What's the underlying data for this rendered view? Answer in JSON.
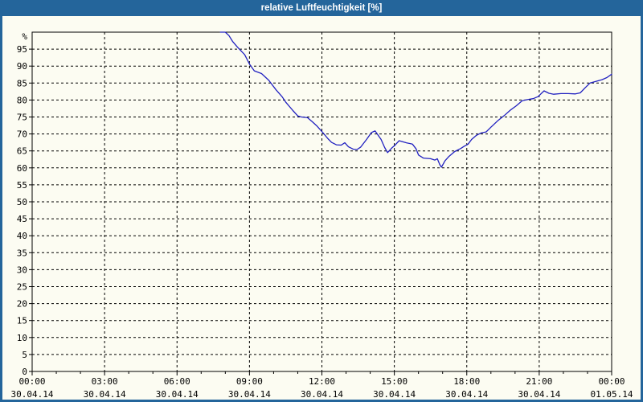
{
  "window": {
    "title": "relative Luftfeuchtigkeit [%]",
    "title_bar_color": "#24659B",
    "content_background": "#FCFCF2"
  },
  "chart_data": {
    "type": "line",
    "title": "relative Luftfeuchtigkeit [%]",
    "unit_label": "%",
    "line_color": "#2121C0",
    "grid": "dashed",
    "ylim": [
      0,
      100
    ],
    "y_ticks": [
      95,
      90,
      85,
      80,
      75,
      70,
      65,
      60,
      55,
      50,
      45,
      40,
      35,
      30,
      25,
      20,
      15,
      10,
      5,
      0
    ],
    "x_range_hours": [
      0,
      24
    ],
    "x_major_step_hours": 3,
    "x_minor_step_hours": 1,
    "x_ticks": [
      {
        "hour": 0,
        "time": "00:00",
        "date": "30.04.14"
      },
      {
        "hour": 3,
        "time": "03:00",
        "date": "30.04.14"
      },
      {
        "hour": 6,
        "time": "06:00",
        "date": "30.04.14"
      },
      {
        "hour": 9,
        "time": "09:00",
        "date": "30.04.14"
      },
      {
        "hour": 12,
        "time": "12:00",
        "date": "30.04.14"
      },
      {
        "hour": 15,
        "time": "15:00",
        "date": "30.04.14"
      },
      {
        "hour": 18,
        "time": "18:00",
        "date": "30.04.14"
      },
      {
        "hour": 21,
        "time": "21:00",
        "date": "30.04.14"
      },
      {
        "hour": 24,
        "time": "00:00",
        "date": "01.05.14"
      }
    ],
    "series": [
      {
        "name": "relative Luftfeuchtigkeit",
        "points": [
          [
            7.8,
            100
          ],
          [
            8.0,
            100
          ],
          [
            8.15,
            99.0
          ],
          [
            8.3,
            97.3
          ],
          [
            8.5,
            95.6
          ],
          [
            8.8,
            93.4
          ],
          [
            9.0,
            90.6
          ],
          [
            9.2,
            88.6
          ],
          [
            9.5,
            87.8
          ],
          [
            9.8,
            85.8
          ],
          [
            10.1,
            83.0
          ],
          [
            10.35,
            81.0
          ],
          [
            10.5,
            79.4
          ],
          [
            10.8,
            76.9
          ],
          [
            11.0,
            75.3
          ],
          [
            11.15,
            75.0
          ],
          [
            11.4,
            74.8
          ],
          [
            11.6,
            73.6
          ],
          [
            11.8,
            72.3
          ],
          [
            12.05,
            70.3
          ],
          [
            12.25,
            68.6
          ],
          [
            12.4,
            67.5
          ],
          [
            12.6,
            66.8
          ],
          [
            12.8,
            66.7
          ],
          [
            12.95,
            67.4
          ],
          [
            13.1,
            66.2
          ],
          [
            13.3,
            65.5
          ],
          [
            13.45,
            65.4
          ],
          [
            13.6,
            66.1
          ],
          [
            13.85,
            68.4
          ],
          [
            14.05,
            70.4
          ],
          [
            14.2,
            70.9
          ],
          [
            14.45,
            68.4
          ],
          [
            14.6,
            66.0
          ],
          [
            14.72,
            64.5
          ],
          [
            14.9,
            65.9
          ],
          [
            15.0,
            66.5
          ],
          [
            15.2,
            68.0
          ],
          [
            15.5,
            67.4
          ],
          [
            15.75,
            67.0
          ],
          [
            15.9,
            65.6
          ],
          [
            16.0,
            63.8
          ],
          [
            16.2,
            62.9
          ],
          [
            16.5,
            62.7
          ],
          [
            16.68,
            62.3
          ],
          [
            16.78,
            62.7
          ],
          [
            16.88,
            61.0
          ],
          [
            16.95,
            60.2
          ],
          [
            17.1,
            62.1
          ],
          [
            17.25,
            63.3
          ],
          [
            17.5,
            64.8
          ],
          [
            17.75,
            65.7
          ],
          [
            17.9,
            66.4
          ],
          [
            18.05,
            67.0
          ],
          [
            18.2,
            68.4
          ],
          [
            18.4,
            69.6
          ],
          [
            18.6,
            70.3
          ],
          [
            18.8,
            70.6
          ],
          [
            19.0,
            72.0
          ],
          [
            19.3,
            74.0
          ],
          [
            19.55,
            75.4
          ],
          [
            19.8,
            77.0
          ],
          [
            20.05,
            78.3
          ],
          [
            20.3,
            79.8
          ],
          [
            20.55,
            80.2
          ],
          [
            20.75,
            80.4
          ],
          [
            20.95,
            81.0
          ],
          [
            21.2,
            82.7
          ],
          [
            21.4,
            82.0
          ],
          [
            21.6,
            81.7
          ],
          [
            21.9,
            81.9
          ],
          [
            22.2,
            81.9
          ],
          [
            22.5,
            81.8
          ],
          [
            22.7,
            82.1
          ],
          [
            22.9,
            83.6
          ],
          [
            23.1,
            85.0
          ],
          [
            23.3,
            85.4
          ],
          [
            23.6,
            86.0
          ],
          [
            23.8,
            86.6
          ],
          [
            24.0,
            87.6
          ]
        ]
      }
    ]
  }
}
